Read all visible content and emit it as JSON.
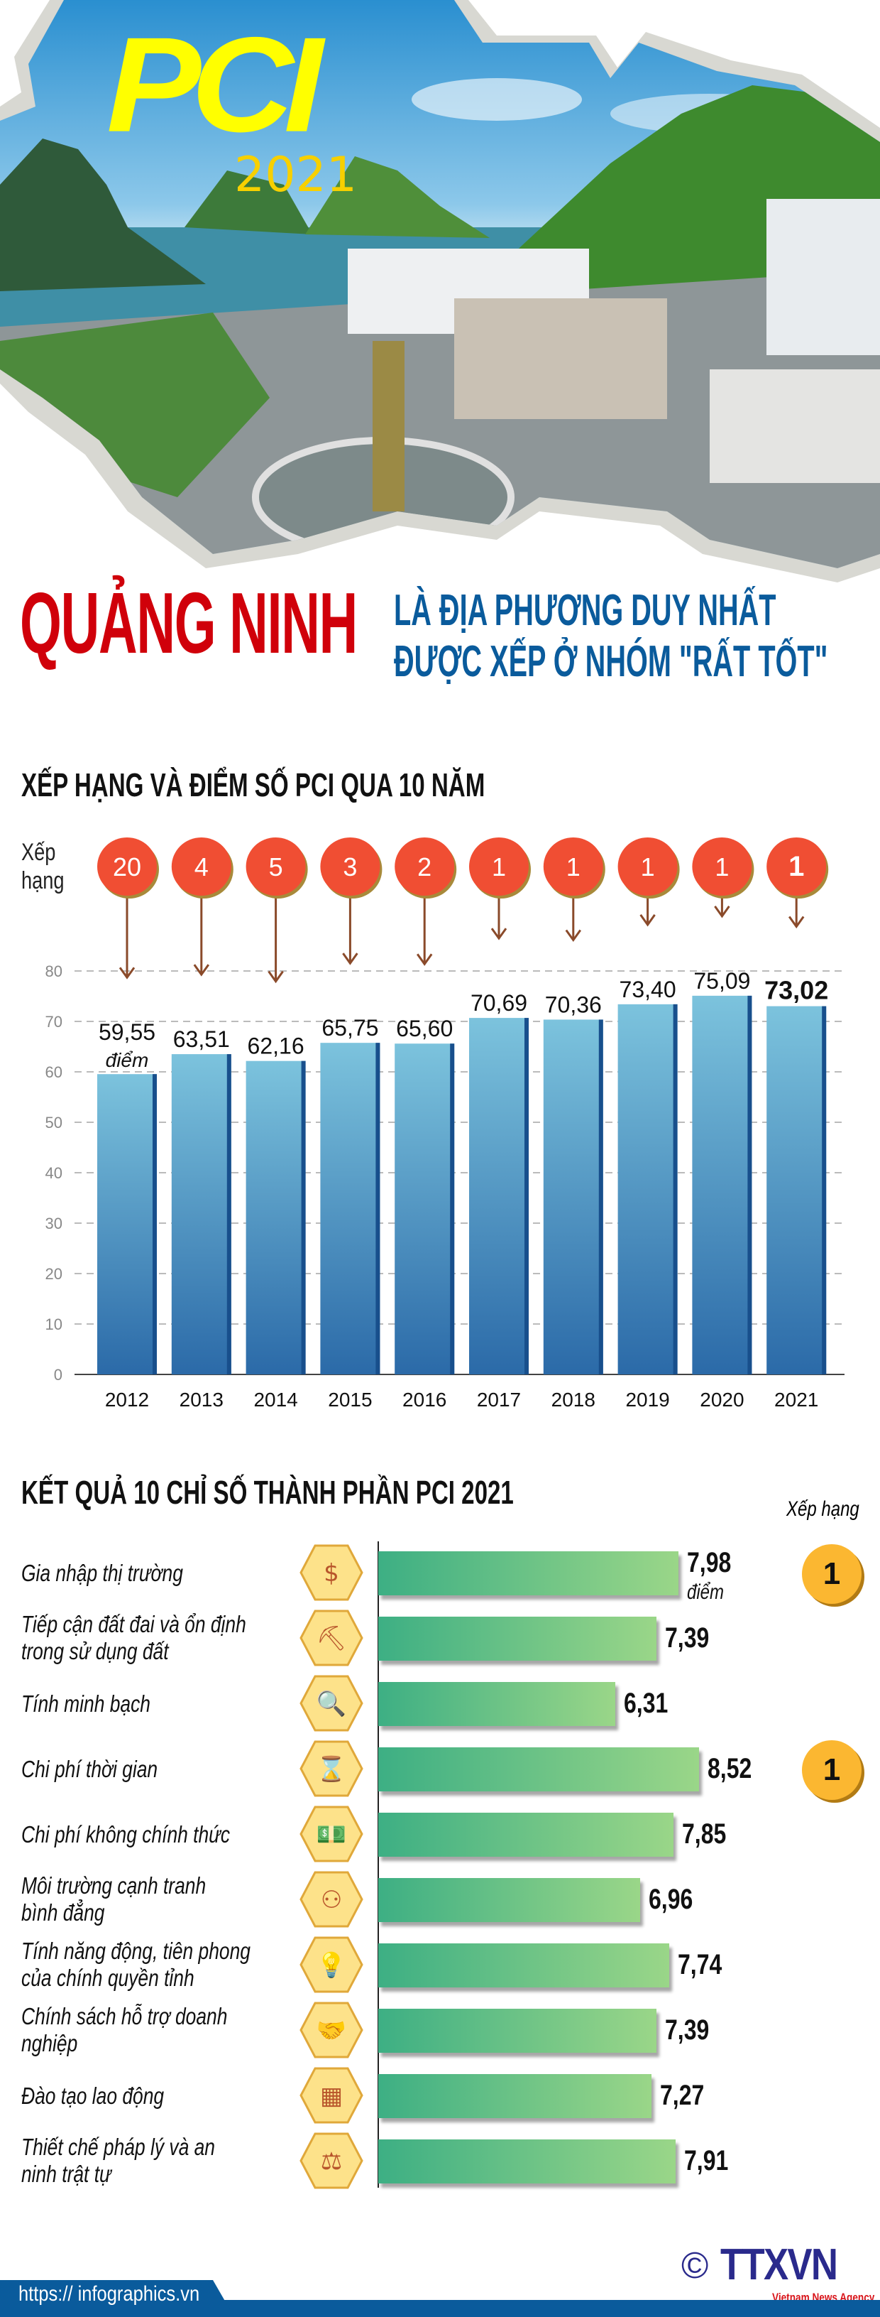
{
  "header": {
    "logo_text": "PCI",
    "logo_year": "2021",
    "headline": "QUẢNG NINH",
    "subheadline_line1": "LÀ ĐỊA PHƯƠNG DUY NHẤT",
    "subheadline_line2": "ĐƯỢC XẾP Ở NHÓM \"RẤT TỐT\""
  },
  "section1": {
    "title": "XẾP HẠNG VÀ ĐIỂM SỐ PCI QUA 10 NĂM",
    "rank_label_line1": "Xếp",
    "rank_label_line2": "hạng",
    "unit": "điểm"
  },
  "section2": {
    "title": "KẾT QUẢ 10 CHỈ SỐ THÀNH PHẦN PCI 2021",
    "rank_header": "Xếp hạng",
    "unit": "điểm"
  },
  "colors": {
    "headline": "#d0000a",
    "subheadline": "#0a5b9c",
    "rank_pin": "#f04e33",
    "bar_top": "#7cc3dd",
    "bar_bottom": "#2b6aa8",
    "index_bar_start": "#3daf84",
    "index_bar_end": "#9ad688",
    "index_rank": "#fbb731",
    "icon_hex": "#fde28a",
    "icon_glyph": "#b8552b"
  },
  "chart_data": [
    {
      "type": "bar",
      "title": "XẾP HẠNG VÀ ĐIỂM SỐ PCI QUA 10 NĂM",
      "categories": [
        "2012",
        "2013",
        "2014",
        "2015",
        "2016",
        "2017",
        "2018",
        "2019",
        "2020",
        "2021"
      ],
      "values": [
        59.55,
        63.51,
        62.16,
        65.75,
        65.6,
        70.69,
        70.36,
        73.4,
        75.09,
        73.02
      ],
      "value_labels": [
        "59,55",
        "63,51",
        "62,16",
        "65,75",
        "65,60",
        "70,69",
        "70,36",
        "73,40",
        "75,09",
        "73,02"
      ],
      "ranks": [
        "20",
        "4",
        "5",
        "3",
        "2",
        "1",
        "1",
        "1",
        "1",
        "1"
      ],
      "ylim": [
        0,
        80
      ],
      "yticks": [
        "0",
        "10",
        "20",
        "30",
        "40",
        "50",
        "60",
        "70",
        "80"
      ],
      "grid": true
    },
    {
      "type": "bar",
      "orientation": "horizontal",
      "title": "KẾT QUẢ 10 CHỈ SỐ THÀNH PHẦN PCI 2021",
      "categories": [
        {
          "line1": "Gia nhập thị trường",
          "line2": "",
          "icon": "pie-chart-dollar-icon"
        },
        {
          "line1": "Tiếp cận đất đai và ổn định",
          "line2": "trong sử dụng đất",
          "icon": "shovel-land-icon"
        },
        {
          "line1": "Tính minh bạch",
          "line2": "",
          "icon": "magnifier-chart-icon"
        },
        {
          "line1": "Chi phí thời gian",
          "line2": "",
          "icon": "hourglass-icon"
        },
        {
          "line1": "Chi phí không chính thức",
          "line2": "",
          "icon": "money-stack-icon"
        },
        {
          "line1": "Môi trường cạnh tranh",
          "line2": "bình đẳng",
          "icon": "competition-people-icon"
        },
        {
          "line1": "Tính năng động, tiên phong",
          "line2": "của chính quyền tỉnh",
          "icon": "lightbulb-icon"
        },
        {
          "line1": "Chính sách hỗ trợ doanh",
          "line2": "nghiệp",
          "icon": "handshake-icon"
        },
        {
          "line1": "Đào tạo lao động",
          "line2": "",
          "icon": "training-board-icon"
        },
        {
          "line1": "Thiết chế pháp lý và an",
          "line2": "ninh trật tự",
          "icon": "scales-icon"
        }
      ],
      "values": [
        7.98,
        7.39,
        6.31,
        8.52,
        7.85,
        6.96,
        7.74,
        7.39,
        7.27,
        7.91
      ],
      "value_labels": [
        "7,98",
        "7,39",
        "6,31",
        "8,52",
        "7,85",
        "6,96",
        "7,74",
        "7,39",
        "7,27",
        "7,91"
      ],
      "ranks": [
        "1",
        "",
        "",
        "1",
        "",
        "",
        "",
        "",
        "",
        ""
      ]
    }
  ],
  "footer": {
    "url": "https:// infographics.vn",
    "copyright_symbol": "©",
    "agency_logo": "TTXVN",
    "agency_tagline": "Vietnam News Agency"
  }
}
